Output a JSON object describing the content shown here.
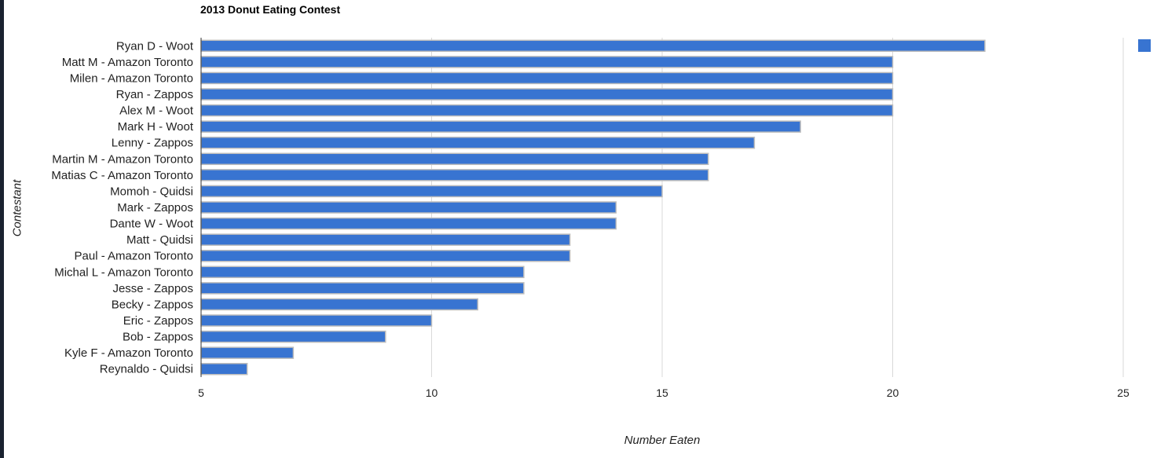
{
  "chart_data": {
    "type": "bar",
    "orientation": "horizontal",
    "title": "2013 Donut Eating Contest",
    "xlabel": "Number Eaten",
    "ylabel": "Contestant",
    "xlim": [
      5,
      25
    ],
    "xticks": [
      "5",
      "10",
      "15",
      "20",
      "25"
    ],
    "grid": true,
    "legend": "top-right",
    "colors": {
      "bar": "#3874d1",
      "bar_border": "#bcbcbc",
      "grid": "#d9d9d9",
      "axis": "#333333"
    },
    "categories": [
      "Ryan D - Woot",
      "Matt M - Amazon Toronto",
      "Milen - Amazon Toronto",
      "Ryan - Zappos",
      "Alex M - Woot",
      "Mark H - Woot",
      "Lenny - Zappos",
      "Martin M - Amazon Toronto",
      "Matias C - Amazon Toronto",
      "Momoh - Quidsi",
      "Mark - Zappos",
      "Dante W - Woot",
      "Matt - Quidsi",
      "Paul - Amazon Toronto",
      "Michal L - Amazon Toronto",
      "Jesse - Zappos",
      "Becky - Zappos",
      "Eric - Zappos",
      "Bob - Zappos",
      "Kyle F - Amazon Toronto",
      "Reynaldo - Quidsi"
    ],
    "values": [
      22,
      20,
      20,
      20,
      20,
      18,
      17,
      16,
      16,
      15,
      14,
      14,
      13,
      13,
      12,
      12,
      11,
      10,
      9,
      7,
      6
    ]
  }
}
